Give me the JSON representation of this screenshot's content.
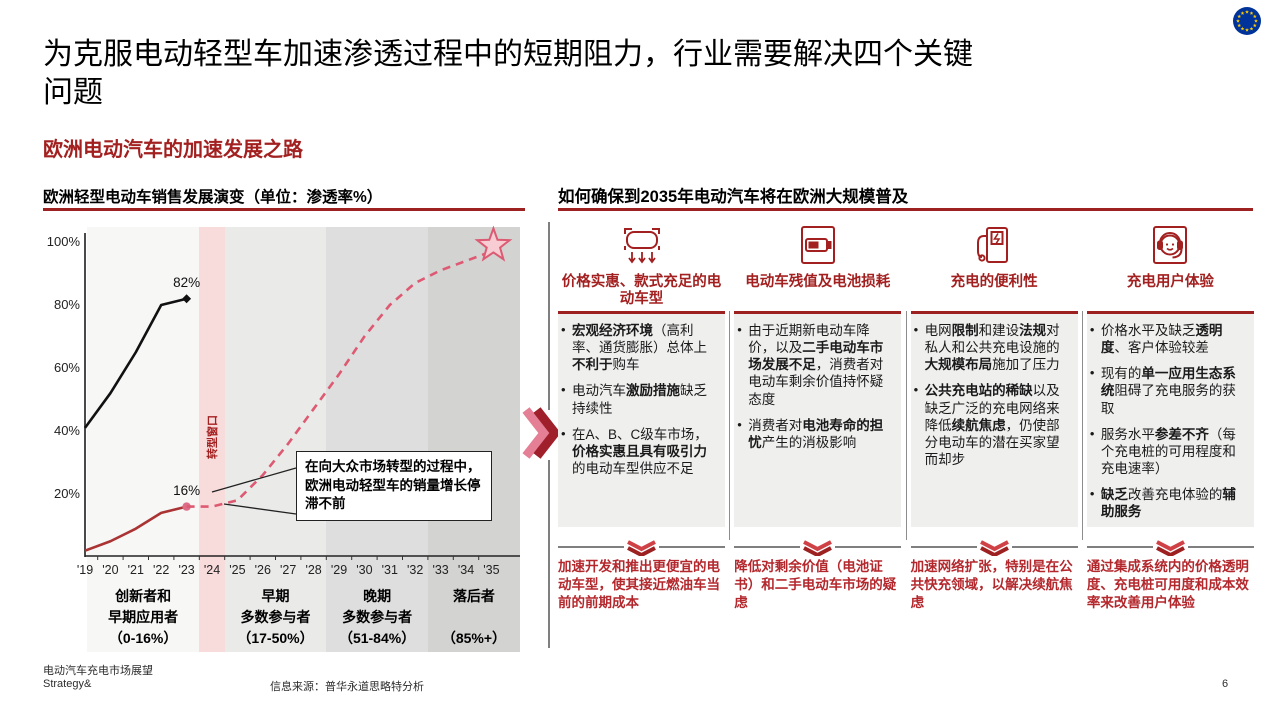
{
  "page": {
    "title": "为克服电动轻型车加速渗透过程中的短期阻力，行业需要解决四个关键问题",
    "subtitle": "欧洲电动汽车的加速发展之路",
    "top_right_icon": "eu-flag-icon",
    "footer": {
      "report_title": "电动汽车充电市场展望",
      "brand": "Strategy&",
      "source": "信息来源：普华永道思略特分析",
      "page_number": "6"
    },
    "colors": {
      "accent_red": "#a32020",
      "rule_maroon": "#9d2121",
      "action_red": "#b3282d",
      "dashed_pink": "#dd5a72",
      "solid_red_line": "#aa3333",
      "band_pink": "#f8dcdc",
      "eu_blue": "#003399",
      "eu_star_yellow": "#ffcc00"
    }
  },
  "chart_data": {
    "type": "line",
    "title": "欧洲轻型电动车销售发展演变（单位：渗透率%）",
    "x": [
      "'19",
      "'20",
      "'21",
      "'22",
      "'23",
      "'24",
      "'25",
      "'26",
      "'27",
      "'28",
      "'29",
      "'30",
      "'31",
      "'32",
      "'33",
      "'34",
      "'35"
    ],
    "ylim": [
      0,
      100
    ],
    "grid": false,
    "legend": "none",
    "yticks": [
      {
        "v": 100,
        "label": "100%"
      },
      {
        "v": 80,
        "label": "80%"
      },
      {
        "v": 60,
        "label": "60%"
      },
      {
        "v": 40,
        "label": "40%"
      },
      {
        "v": 20,
        "label": "20%"
      }
    ],
    "series": [
      {
        "name": "black-solid-line",
        "color": "#111111",
        "dashed": false,
        "start": 0,
        "values": [
          41,
          52,
          65,
          80,
          82
        ],
        "end_label": "82%",
        "end_marker": "diamond"
      },
      {
        "name": "red-solid-line",
        "color": "#aa3333",
        "dashed": false,
        "start": 0,
        "values": [
          2,
          5,
          9,
          14,
          16
        ],
        "end_label": "16%",
        "end_marker": "dot"
      },
      {
        "name": "pink-dashed-projection",
        "color": "#dd5a72",
        "dashed": true,
        "start": 4,
        "values": [
          16,
          16,
          18,
          26,
          36,
          47,
          58,
          70,
          80,
          87,
          91,
          94,
          97
        ],
        "end_marker": "star"
      }
    ],
    "bands": [
      {
        "from": 0,
        "to": 4,
        "color": "#f7f7f6",
        "label_lines": [
          "创新者和",
          "早期应用者",
          "（0-16%）"
        ]
      },
      {
        "from": 5,
        "to": 5,
        "color": "#f8dcdc",
        "vertical_label": true,
        "label_lines": [
          "转型窗口"
        ]
      },
      {
        "from": 6,
        "to": 9,
        "color": "#eaeae9",
        "label_lines": [
          "早期",
          "多数参与者",
          "（17-50%）"
        ]
      },
      {
        "from": 10,
        "to": 13,
        "color": "#dedede",
        "label_lines": [
          "晚期",
          "多数参与者",
          "（51-84%）"
        ]
      },
      {
        "from": 14,
        "to": 16,
        "color": "#d3d3d2",
        "label_lines": [
          "落后者",
          "",
          "（85%+）"
        ]
      }
    ],
    "callout": "在向大众市场转型的过程中，欧洲电动轻型车的销量增长停滞不前"
  },
  "right_panel": {
    "heading": "如何确保到2035年电动汽车将在欧洲大规模普及",
    "transition_icon": "double-chevron-right-icon",
    "columns": [
      {
        "icon": "car-models-icon",
        "title": "价格实惠、款式充足的电动车型",
        "bullets": [
          [
            [
              1,
              "宏观经济环境"
            ],
            [
              0,
              "（高利率、通货膨胀）总体上"
            ],
            [
              1,
              "不利于"
            ],
            [
              0,
              "购车"
            ]
          ],
          [
            [
              0,
              "电动汽车"
            ],
            [
              1,
              "激励措施"
            ],
            [
              0,
              "缺乏持续性"
            ]
          ],
          [
            [
              0,
              "在A、B、C级车市场，"
            ],
            [
              1,
              "价格实惠且具有吸引力"
            ],
            [
              0,
              "的电动车型供应不足"
            ]
          ]
        ],
        "action": "加速开发和推出更便宜的电动车型，使其接近燃油车当前的前期成本"
      },
      {
        "icon": "battery-icon",
        "title": "电动车残值及电池损耗",
        "bullets": [
          [
            [
              0,
              "由于近期新电动车降价，以及"
            ],
            [
              1,
              "二手电动车市场发展不足"
            ],
            [
              0,
              "，消费者对电动车剩余价值持怀疑态度"
            ]
          ],
          [
            [
              0,
              "消费者对"
            ],
            [
              1,
              "电池寿命的担忧"
            ],
            [
              0,
              "产生的消极影响"
            ]
          ]
        ],
        "action": "降低对剩余价值（电池证书）和二手电动车市场的疑虑"
      },
      {
        "icon": "charging-station-icon",
        "title": "充电的便利性",
        "bullets": [
          [
            [
              0,
              "电网"
            ],
            [
              1,
              "限制"
            ],
            [
              0,
              "和建设"
            ],
            [
              1,
              "法规"
            ],
            [
              0,
              "对私人和公共充电设施的"
            ],
            [
              1,
              "大规模布局"
            ],
            [
              0,
              "施加了压力"
            ]
          ],
          [
            [
              1,
              "公共充电站的稀缺"
            ],
            [
              0,
              "以及缺乏广泛的充电网络来降低"
            ],
            [
              1,
              "续航焦虑"
            ],
            [
              0,
              "，仍使部分电动车的潜在买家望而却步"
            ]
          ]
        ],
        "action": "加速网络扩张，特别是在公共快充领域，以解决续航焦虑"
      },
      {
        "icon": "headset-icon",
        "title": "充电用户体验",
        "bullets": [
          [
            [
              0,
              "价格水平及缺乏"
            ],
            [
              1,
              "透明度"
            ],
            [
              0,
              "、客户体验较差"
            ]
          ],
          [
            [
              0,
              "现有的"
            ],
            [
              1,
              "单一应用生态系统"
            ],
            [
              0,
              "阻碍了充电服务的获取"
            ]
          ],
          [
            [
              0,
              "服务水平"
            ],
            [
              1,
              "参差不齐"
            ],
            [
              0,
              "（每个充电桩的可用程度和充电速率）"
            ]
          ],
          [
            [
              1,
              "缺乏"
            ],
            [
              0,
              "改善充电体验的"
            ],
            [
              1,
              "辅助服务"
            ]
          ]
        ],
        "action": "通过集成系统内的价格透明度、充电桩可用度和成本效率来改善用户体验"
      }
    ],
    "action_icon": "chevron-down-icon"
  }
}
